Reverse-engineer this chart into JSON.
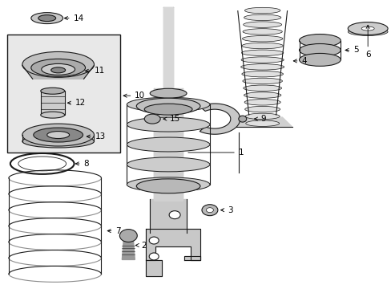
{
  "bg_color": "#ffffff",
  "line_color": "#1a1a1a",
  "box_bg": "#e8e8e8",
  "part_fill": "#d8d8d8",
  "part_dark": "#aaaaaa",
  "part_light": "#eeeeee"
}
